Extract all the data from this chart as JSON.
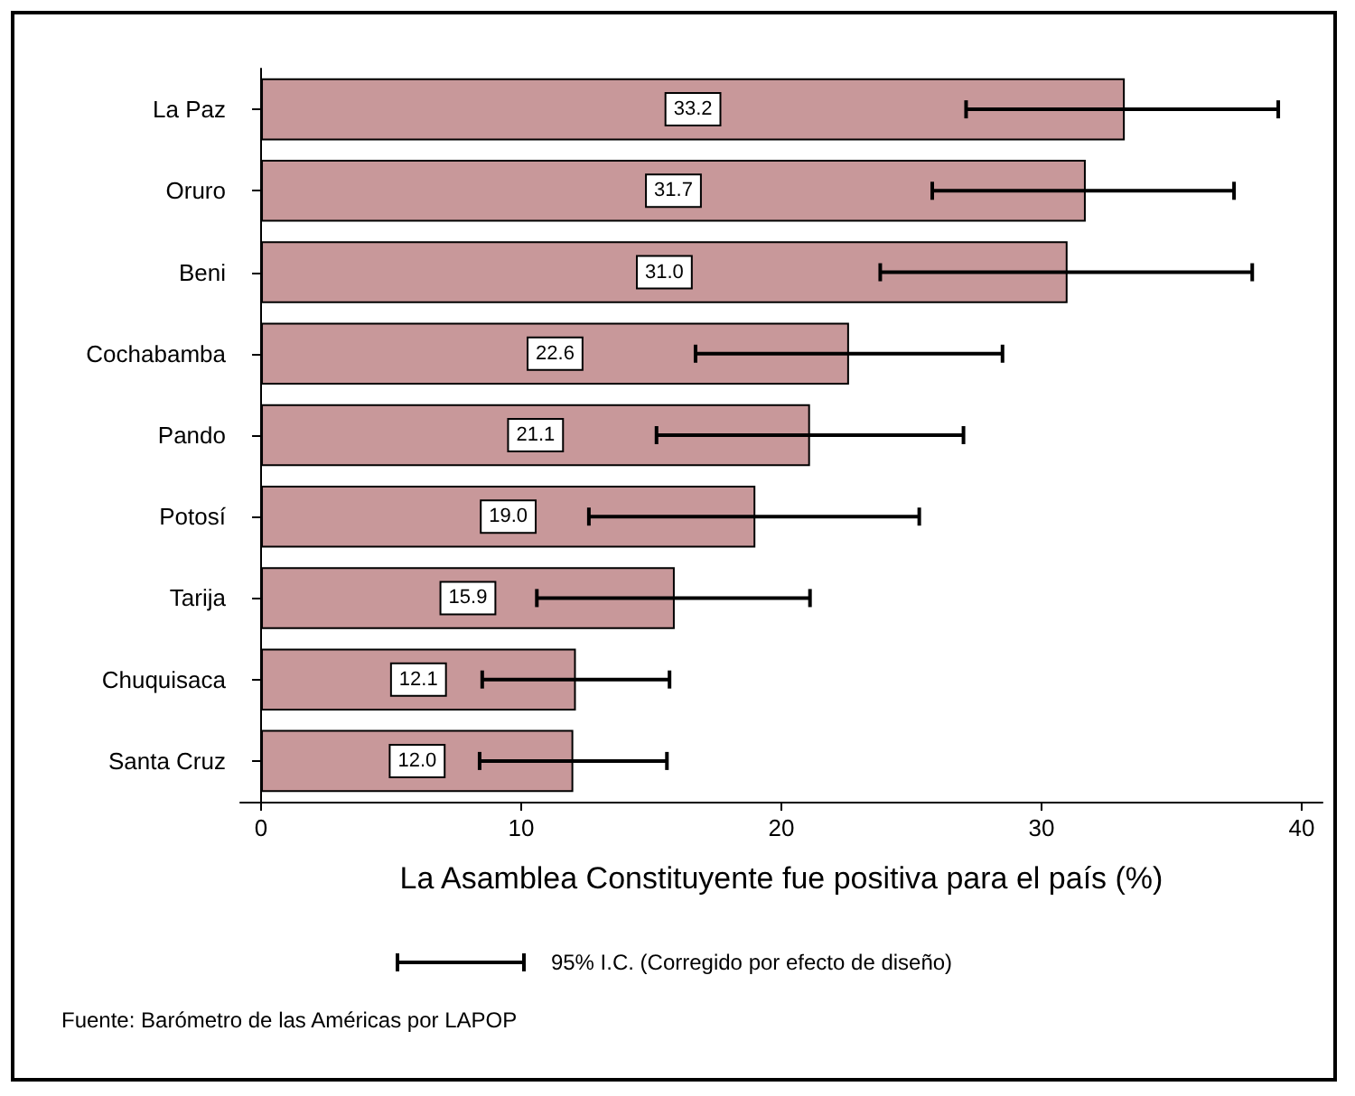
{
  "chart_data": {
    "type": "bar",
    "orientation": "horizontal",
    "categories": [
      "La Paz",
      "Oruro",
      "Beni",
      "Cochabamba",
      "Pando",
      "Potosí",
      "Tarija",
      "Chuquisaca",
      "Santa Cruz"
    ],
    "values": [
      33.2,
      31.7,
      31.0,
      22.6,
      21.1,
      19.0,
      15.9,
      12.1,
      12.0
    ],
    "errors": [
      [
        27.1,
        39.1
      ],
      [
        25.8,
        37.4
      ],
      [
        23.8,
        38.1
      ],
      [
        16.7,
        28.5
      ],
      [
        15.2,
        27.0
      ],
      [
        12.6,
        25.3
      ],
      [
        10.6,
        21.1
      ],
      [
        8.5,
        15.7
      ],
      [
        8.4,
        15.6
      ]
    ],
    "color": "#c8989a",
    "value_labels": [
      "33.2",
      "31.7",
      "31.0",
      "22.6",
      "21.1",
      "19.0",
      "15.9",
      "12.1",
      "12.0"
    ],
    "xlabel": "La Asamblea Constituyente fue positiva para el país (%)",
    "xlim": [
      -0.8,
      40.8
    ],
    "xticks": [
      0,
      10,
      20,
      30,
      40
    ],
    "legend_title": "95% I.C. (Corregido por efecto de diseño)",
    "grid": false,
    "annotations": [
      "Fuente: Barómetro de las Américas por LAPOP"
    ]
  }
}
